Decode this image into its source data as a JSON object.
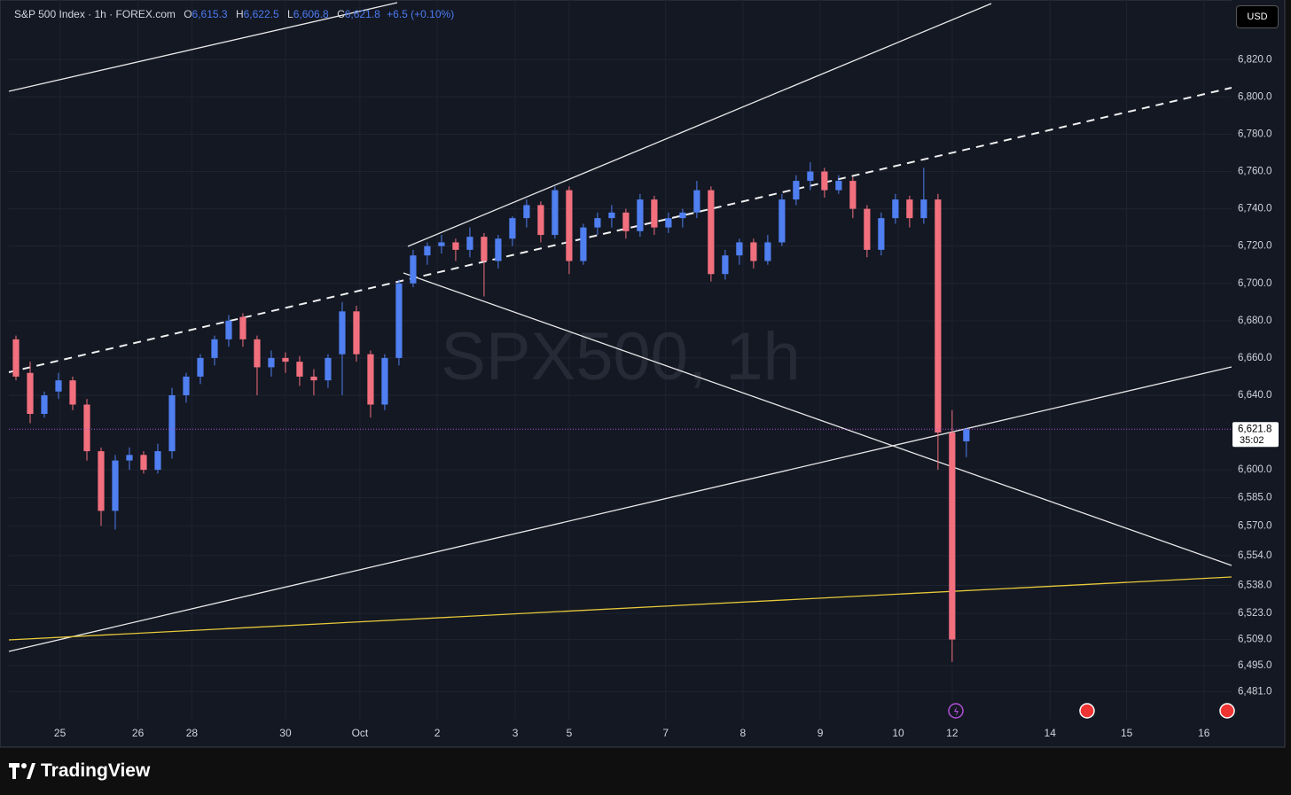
{
  "header": {
    "symbol": "S&P 500 Index · 1h · FOREX.com",
    "ohlc": [
      {
        "key": "O",
        "value": 6615.3,
        "label": "6,615.3"
      },
      {
        "key": "H",
        "value": 6622.5,
        "label": "6,622.5"
      },
      {
        "key": "L",
        "value": 6606.8,
        "label": "6,606.8"
      },
      {
        "key": "C",
        "value": 6621.8,
        "label": "6,621.8"
      }
    ],
    "change": "+6.5 (+0.10%)"
  },
  "currency": "USD",
  "brand": "TradingView",
  "chart_data": {
    "type": "candlestick",
    "watermark": "SPX500, 1h",
    "up_color": "#4f7ff0",
    "down_color": "#f2707e",
    "ylim": [
      6466,
      6852
    ],
    "yticks": [
      {
        "value": 6820,
        "label": "6,820.0"
      },
      {
        "value": 6800,
        "label": "6,800.0"
      },
      {
        "value": 6780,
        "label": "6,780.0"
      },
      {
        "value": 6760,
        "label": "6,760.0"
      },
      {
        "value": 6740,
        "label": "6,740.0"
      },
      {
        "value": 6720,
        "label": "6,720.0"
      },
      {
        "value": 6700,
        "label": "6,700.0"
      },
      {
        "value": 6680,
        "label": "6,680.0"
      },
      {
        "value": 6660,
        "label": "6,660.0"
      },
      {
        "value": 6640,
        "label": "6,640.0"
      },
      {
        "value": 6600,
        "label": "6,600.0"
      },
      {
        "value": 6585,
        "label": "6,585.0"
      },
      {
        "value": 6570,
        "label": "6,570.0"
      },
      {
        "value": 6554,
        "label": "6,554.0"
      },
      {
        "value": 6538,
        "label": "6,538.0"
      },
      {
        "value": 6523,
        "label": "6,523.0"
      },
      {
        "value": 6509,
        "label": "6,509.0"
      },
      {
        "value": 6495,
        "label": "6,495.0"
      },
      {
        "value": 6481,
        "label": "6,481.0"
      }
    ],
    "xlim": [
      -0.5,
      85.7
    ],
    "xticks": [
      {
        "value": 3.1,
        "label": "25"
      },
      {
        "value": 8.6,
        "label": "26"
      },
      {
        "value": 12.4,
        "label": "28"
      },
      {
        "value": 19,
        "label": "30"
      },
      {
        "value": 24.25,
        "label": "Oct"
      },
      {
        "value": 29.7,
        "label": "2"
      },
      {
        "value": 35.2,
        "label": "3"
      },
      {
        "value": 39,
        "label": "5"
      },
      {
        "value": 45.8,
        "label": "7"
      },
      {
        "value": 51.25,
        "label": "8"
      },
      {
        "value": 56.7,
        "label": "9"
      },
      {
        "value": 62.2,
        "label": "10"
      },
      {
        "value": 66,
        "label": "12"
      },
      {
        "value": 72.9,
        "label": "14"
      },
      {
        "value": 78.3,
        "label": "15"
      },
      {
        "value": 83.75,
        "label": "16"
      }
    ],
    "grid": true,
    "last_price": {
      "value": 6621.8,
      "label": "6,621.8",
      "countdown": "35:02",
      "color": "#b04fd6"
    },
    "candles": [
      [
        6670,
        6672,
        6648,
        6650
      ],
      [
        6652,
        6658,
        6625,
        6630
      ],
      [
        6630,
        6642,
        6628,
        6640
      ],
      [
        6642,
        6652,
        6638,
        6648
      ],
      [
        6648,
        6650,
        6632,
        6635
      ],
      [
        6635,
        6638,
        6605,
        6610
      ],
      [
        6610,
        6612,
        6570,
        6578
      ],
      [
        6578,
        6608,
        6568,
        6605
      ],
      [
        6605,
        6612,
        6600,
        6608
      ],
      [
        6608,
        6610,
        6598,
        6600
      ],
      [
        6600,
        6614,
        6598,
        6610
      ],
      [
        6610,
        6644,
        6606,
        6640
      ],
      [
        6640,
        6652,
        6636,
        6650
      ],
      [
        6650,
        6662,
        6646,
        6660
      ],
      [
        6660,
        6672,
        6656,
        6670
      ],
      [
        6670,
        6683,
        6666,
        6680
      ],
      [
        6682,
        6684,
        6666,
        6670
      ],
      [
        6670,
        6672,
        6640,
        6655
      ],
      [
        6655,
        6664,
        6650,
        6660
      ],
      [
        6660,
        6663,
        6652,
        6658
      ],
      [
        6658,
        6661,
        6645,
        6650
      ],
      [
        6650,
        6654,
        6640,
        6648
      ],
      [
        6648,
        6662,
        6644,
        6660
      ],
      [
        6662,
        6690,
        6640,
        6685
      ],
      [
        6685,
        6688,
        6658,
        6662
      ],
      [
        6662,
        6664,
        6628,
        6635
      ],
      [
        6635,
        6662,
        6632,
        6660
      ],
      [
        6660,
        6702,
        6656,
        6700
      ],
      [
        6700,
        6718,
        6698,
        6715
      ],
      [
        6715,
        6722,
        6710,
        6720
      ],
      [
        6720,
        6726,
        6716,
        6722
      ],
      [
        6722,
        6724,
        6712,
        6718
      ],
      [
        6718,
        6730,
        6714,
        6725
      ],
      [
        6725,
        6727,
        6693,
        6712
      ],
      [
        6712,
        6726,
        6708,
        6724
      ],
      [
        6724,
        6736,
        6720,
        6735
      ],
      [
        6735,
        6745,
        6730,
        6742
      ],
      [
        6742,
        6744,
        6722,
        6726
      ],
      [
        6726,
        6752,
        6724,
        6750
      ],
      [
        6750,
        6752,
        6705,
        6712
      ],
      [
        6712,
        6732,
        6710,
        6730
      ],
      [
        6730,
        6738,
        6726,
        6735
      ],
      [
        6735,
        6742,
        6730,
        6738
      ],
      [
        6738,
        6740,
        6724,
        6728
      ],
      [
        6728,
        6748,
        6725,
        6745
      ],
      [
        6745,
        6747,
        6726,
        6730
      ],
      [
        6730,
        6738,
        6727,
        6735
      ],
      [
        6735,
        6740,
        6730,
        6738
      ],
      [
        6738,
        6755,
        6735,
        6750
      ],
      [
        6750,
        6752,
        6701,
        6705
      ],
      [
        6705,
        6718,
        6702,
        6715
      ],
      [
        6715,
        6724,
        6710,
        6722
      ],
      [
        6722,
        6724,
        6708,
        6712
      ],
      [
        6712,
        6726,
        6710,
        6722
      ],
      [
        6722,
        6748,
        6720,
        6745
      ],
      [
        6745,
        6758,
        6742,
        6755
      ],
      [
        6755,
        6765,
        6750,
        6760
      ],
      [
        6760,
        6762,
        6746,
        6750
      ],
      [
        6750,
        6758,
        6748,
        6755
      ],
      [
        6755,
        6757,
        6735,
        6740
      ],
      [
        6740,
        6742,
        6714,
        6718
      ],
      [
        6718,
        6738,
        6715,
        6735
      ],
      [
        6735,
        6748,
        6732,
        6745
      ],
      [
        6745,
        6747,
        6730,
        6735
      ],
      [
        6735,
        6762,
        6732,
        6745
      ],
      [
        6745,
        6748,
        6600,
        6620
      ],
      [
        6620,
        6632,
        6497,
        6509
      ]
    ]
  }
}
